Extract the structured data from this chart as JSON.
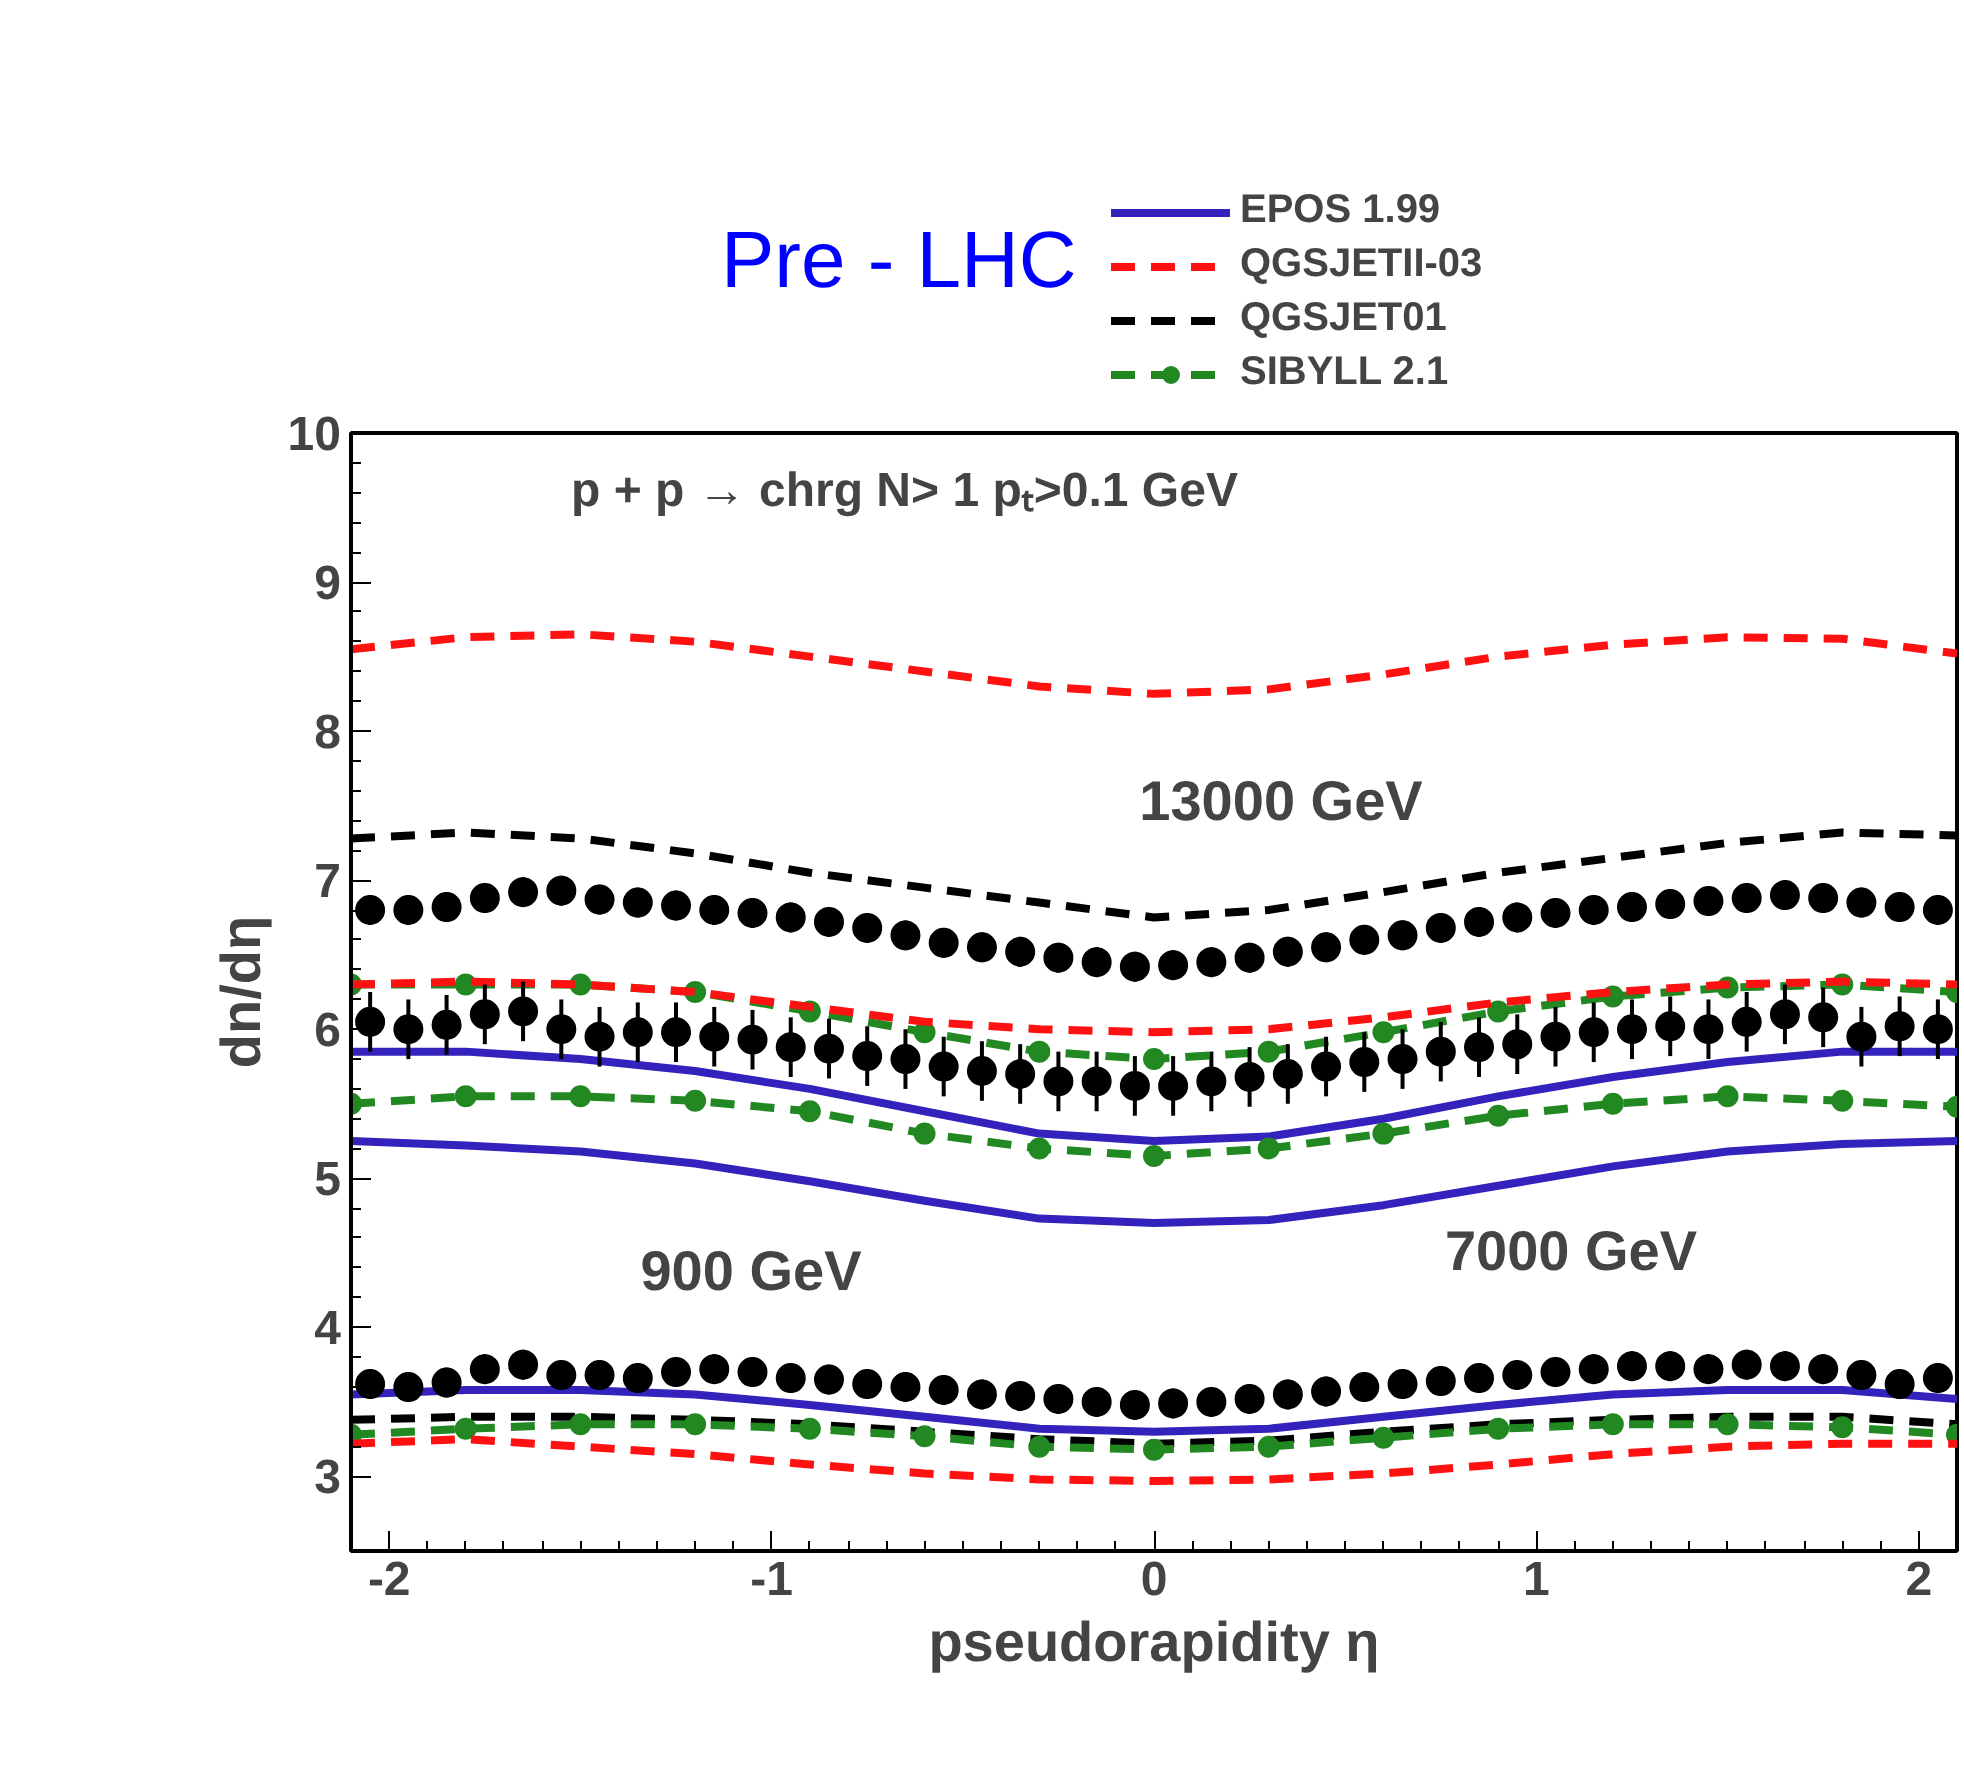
{
  "chart_data": {
    "type": "line",
    "title": "Pre - LHC",
    "subtitle": "p + p → chrg  N> 1   pₜ>0.1 GeV",
    "xlabel": "pseudorapidity η",
    "ylabel": "dn/dη",
    "xlim": [
      -2.1,
      2.1
    ],
    "ylim": [
      2.5,
      10
    ],
    "xticks": [
      -2,
      -1,
      0,
      1,
      2
    ],
    "yticks": [
      3,
      4,
      5,
      6,
      7,
      8,
      9,
      10
    ],
    "grid": false,
    "legend": "top right",
    "annotations": [
      "13000 GeV",
      "7000 GeV",
      "900 GeV"
    ],
    "series": [
      {
        "name": "EPOS 1.99",
        "color": "#3322bb",
        "line_style": "solid",
        "marker": "none",
        "x": [
          -2.1,
          -1.8,
          -1.5,
          -1.2,
          -0.9,
          -0.6,
          -0.3,
          0,
          0.3,
          0.6,
          0.9,
          1.2,
          1.5,
          1.8,
          2.1
        ],
        "values": [
          5.85,
          5.85,
          5.8,
          5.72,
          5.6,
          5.45,
          5.3,
          5.25,
          5.28,
          5.4,
          5.55,
          5.68,
          5.78,
          5.85,
          5.85
        ]
      },
      {
        "name": "QGSJETII-03",
        "color": "#ff1111",
        "line_style": "dashed",
        "marker": "none",
        "x": [
          -2.1,
          -1.8,
          -1.5,
          -1.2,
          -0.9,
          -0.6,
          -0.3,
          0,
          0.3,
          0.6,
          0.9,
          1.2,
          1.5,
          1.8,
          2.1
        ],
        "values": [
          8.55,
          8.63,
          8.65,
          8.6,
          8.5,
          8.4,
          8.3,
          8.25,
          8.28,
          8.38,
          8.5,
          8.58,
          8.63,
          8.62,
          8.52
        ]
      },
      {
        "name": "QGSJET01",
        "color": "#000000",
        "line_style": "dashed",
        "marker": "none",
        "x": [
          -2.1,
          -1.8,
          -1.5,
          -1.2,
          -0.9,
          -0.6,
          -0.3,
          0,
          0.3,
          0.6,
          0.9,
          1.2,
          1.5,
          1.8,
          2.1
        ],
        "values": [
          7.28,
          7.32,
          7.28,
          7.18,
          7.05,
          6.95,
          6.85,
          6.75,
          6.8,
          6.92,
          7.05,
          7.15,
          7.25,
          7.32,
          7.3
        ]
      },
      {
        "name": "SIBYLL 2.1",
        "color": "#228822",
        "line_style": "dashed",
        "marker": "circle",
        "x": [
          -2.1,
          -1.8,
          -1.5,
          -1.2,
          -0.9,
          -0.6,
          -0.3,
          0,
          0.3,
          0.6,
          0.9,
          1.2,
          1.5,
          1.8,
          2.1
        ],
        "values": [
          6.3,
          6.3,
          6.3,
          6.25,
          6.12,
          5.98,
          5.85,
          5.8,
          5.85,
          5.98,
          6.12,
          6.22,
          6.28,
          6.3,
          6.25
        ]
      },
      {
        "type": "line",
        "color": "#ff1111",
        "line_style": "dashed",
        "marker": "none",
        "x": [
          -2.1,
          -1.8,
          -1.5,
          -1.2,
          -0.9,
          -0.6,
          -0.3,
          0,
          0.3,
          0.6,
          0.9,
          1.2,
          1.5,
          1.8,
          2.1
        ],
        "values": [
          6.3,
          6.32,
          6.3,
          6.25,
          6.15,
          6.05,
          6.0,
          5.98,
          6.0,
          6.08,
          6.18,
          6.25,
          6.3,
          6.32,
          6.3
        ]
      },
      {
        "type": "line",
        "color": "#228822",
        "line_style": "dashed",
        "marker": "circle",
        "x": [
          -2.1,
          -1.8,
          -1.5,
          -1.2,
          -0.9,
          -0.6,
          -0.3,
          0,
          0.3,
          0.6,
          0.9,
          1.2,
          1.5,
          1.8,
          2.1
        ],
        "values": [
          5.5,
          5.55,
          5.55,
          5.52,
          5.45,
          5.3,
          5.2,
          5.15,
          5.2,
          5.3,
          5.42,
          5.5,
          5.55,
          5.52,
          5.48
        ]
      },
      {
        "type": "line",
        "color": "#3322bb",
        "line_style": "solid",
        "marker": "none",
        "x": [
          -2.1,
          -1.8,
          -1.5,
          -1.2,
          -0.9,
          -0.6,
          -0.3,
          0,
          0.3,
          0.6,
          0.9,
          1.2,
          1.5,
          1.8,
          2.1
        ],
        "values": [
          5.25,
          5.22,
          5.18,
          5.1,
          4.98,
          4.85,
          4.73,
          4.7,
          4.72,
          4.82,
          4.95,
          5.08,
          5.18,
          5.23,
          5.25
        ]
      },
      {
        "type": "line",
        "color": "#3322bb",
        "line_style": "solid",
        "marker": "none",
        "x": [
          -2.1,
          -1.8,
          -1.5,
          -1.2,
          -0.9,
          -0.6,
          -0.3,
          0,
          0.3,
          0.6,
          0.9,
          1.2,
          1.5,
          1.8,
          2.1
        ],
        "values": [
          3.55,
          3.58,
          3.58,
          3.55,
          3.48,
          3.4,
          3.32,
          3.3,
          3.32,
          3.4,
          3.48,
          3.55,
          3.58,
          3.58,
          3.52
        ]
      },
      {
        "type": "line",
        "color": "#000000",
        "line_style": "dashed",
        "marker": "none",
        "x": [
          -2.1,
          -1.8,
          -1.5,
          -1.2,
          -0.9,
          -0.6,
          -0.3,
          0,
          0.3,
          0.6,
          0.9,
          1.2,
          1.5,
          1.8,
          2.1
        ],
        "values": [
          3.38,
          3.4,
          3.4,
          3.38,
          3.35,
          3.3,
          3.25,
          3.22,
          3.24,
          3.3,
          3.35,
          3.38,
          3.4,
          3.4,
          3.35
        ]
      },
      {
        "type": "line",
        "color": "#228822",
        "line_style": "dashed",
        "marker": "circle",
        "x": [
          -2.1,
          -1.8,
          -1.5,
          -1.2,
          -0.9,
          -0.6,
          -0.3,
          0,
          0.3,
          0.6,
          0.9,
          1.2,
          1.5,
          1.8,
          2.1
        ],
        "values": [
          3.28,
          3.32,
          3.35,
          3.35,
          3.32,
          3.27,
          3.2,
          3.18,
          3.2,
          3.26,
          3.32,
          3.35,
          3.35,
          3.33,
          3.28
        ]
      },
      {
        "type": "line",
        "color": "#ff1111",
        "line_style": "dashed",
        "marker": "none",
        "x": [
          -2.1,
          -1.8,
          -1.5,
          -1.2,
          -0.9,
          -0.6,
          -0.3,
          0,
          0.3,
          0.6,
          0.9,
          1.2,
          1.5,
          1.8,
          2.1
        ],
        "values": [
          3.22,
          3.25,
          3.2,
          3.15,
          3.08,
          3.02,
          2.98,
          2.97,
          2.98,
          3.02,
          3.08,
          3.15,
          3.2,
          3.22,
          3.22
        ]
      },
      {
        "type": "scatter",
        "color": "#000000",
        "marker": "circle",
        "x": [
          -2.05,
          -1.95,
          -1.85,
          -1.75,
          -1.65,
          -1.55,
          -1.45,
          -1.35,
          -1.25,
          -1.15,
          -1.05,
          -0.95,
          -0.85,
          -0.75,
          -0.65,
          -0.55,
          -0.45,
          -0.35,
          -0.25,
          -0.15,
          -0.05,
          0.05,
          0.15,
          0.25,
          0.35,
          0.45,
          0.55,
          0.65,
          0.75,
          0.85,
          0.95,
          1.05,
          1.15,
          1.25,
          1.35,
          1.45,
          1.55,
          1.65,
          1.75,
          1.85,
          1.95,
          2.05
        ],
        "values": [
          6.8,
          6.8,
          6.82,
          6.88,
          6.92,
          6.93,
          6.87,
          6.85,
          6.83,
          6.8,
          6.78,
          6.75,
          6.72,
          6.68,
          6.63,
          6.58,
          6.55,
          6.52,
          6.48,
          6.45,
          6.42,
          6.43,
          6.45,
          6.48,
          6.52,
          6.55,
          6.6,
          6.63,
          6.68,
          6.72,
          6.75,
          6.78,
          6.8,
          6.82,
          6.84,
          6.86,
          6.88,
          6.9,
          6.88,
          6.85,
          6.82,
          6.8
        ],
        "errors": [
          0.1,
          0.1,
          0.1,
          0.1,
          0.1,
          0.1,
          0.1,
          0.1,
          0.1,
          0.1,
          0.1,
          0.1,
          0.1,
          0.1,
          0.1,
          0.1,
          0.1,
          0.1,
          0.1,
          0.1,
          0.1,
          0.1,
          0.1,
          0.1,
          0.1,
          0.1,
          0.1,
          0.1,
          0.1,
          0.1,
          0.1,
          0.1,
          0.1,
          0.1,
          0.1,
          0.1,
          0.1,
          0.1,
          0.1,
          0.1,
          0.1,
          0.1
        ]
      },
      {
        "type": "scatter",
        "color": "#000000",
        "marker": "circle",
        "x": [
          -2.05,
          -1.95,
          -1.85,
          -1.75,
          -1.65,
          -1.55,
          -1.45,
          -1.35,
          -1.25,
          -1.15,
          -1.05,
          -0.95,
          -0.85,
          -0.75,
          -0.65,
          -0.55,
          -0.45,
          -0.35,
          -0.25,
          -0.15,
          -0.05,
          0.05,
          0.15,
          0.25,
          0.35,
          0.45,
          0.55,
          0.65,
          0.75,
          0.85,
          0.95,
          1.05,
          1.15,
          1.25,
          1.35,
          1.45,
          1.55,
          1.65,
          1.75,
          1.85,
          1.95,
          2.05
        ],
        "values": [
          6.05,
          6.0,
          6.03,
          6.1,
          6.12,
          6.0,
          5.95,
          5.98,
          5.98,
          5.95,
          5.93,
          5.88,
          5.87,
          5.82,
          5.8,
          5.75,
          5.72,
          5.7,
          5.65,
          5.65,
          5.62,
          5.62,
          5.65,
          5.68,
          5.7,
          5.75,
          5.78,
          5.8,
          5.85,
          5.88,
          5.9,
          5.95,
          5.98,
          6.0,
          6.02,
          6.0,
          6.05,
          6.1,
          6.08,
          5.95,
          6.02,
          6.0
        ],
        "errors": [
          0.2,
          0.2,
          0.2,
          0.2,
          0.2,
          0.2,
          0.2,
          0.2,
          0.2,
          0.2,
          0.2,
          0.2,
          0.2,
          0.2,
          0.2,
          0.2,
          0.2,
          0.2,
          0.2,
          0.2,
          0.2,
          0.2,
          0.2,
          0.2,
          0.2,
          0.2,
          0.2,
          0.2,
          0.2,
          0.2,
          0.2,
          0.2,
          0.2,
          0.2,
          0.2,
          0.2,
          0.2,
          0.2,
          0.2,
          0.2,
          0.2,
          0.2
        ]
      },
      {
        "type": "scatter",
        "color": "#000000",
        "marker": "circle",
        "x": [
          -2.05,
          -1.95,
          -1.85,
          -1.75,
          -1.65,
          -1.55,
          -1.45,
          -1.35,
          -1.25,
          -1.15,
          -1.05,
          -0.95,
          -0.85,
          -0.75,
          -0.65,
          -0.55,
          -0.45,
          -0.35,
          -0.25,
          -0.15,
          -0.05,
          0.05,
          0.15,
          0.25,
          0.35,
          0.45,
          0.55,
          0.65,
          0.75,
          0.85,
          0.95,
          1.05,
          1.15,
          1.25,
          1.35,
          1.45,
          1.55,
          1.65,
          1.75,
          1.85,
          1.95,
          2.05
        ],
        "values": [
          3.62,
          3.6,
          3.63,
          3.72,
          3.75,
          3.68,
          3.68,
          3.66,
          3.7,
          3.72,
          3.7,
          3.66,
          3.65,
          3.62,
          3.6,
          3.58,
          3.55,
          3.54,
          3.52,
          3.5,
          3.48,
          3.49,
          3.5,
          3.52,
          3.55,
          3.57,
          3.6,
          3.62,
          3.64,
          3.66,
          3.68,
          3.7,
          3.72,
          3.74,
          3.74,
          3.72,
          3.75,
          3.74,
          3.72,
          3.68,
          3.62,
          3.66
        ],
        "errors": [
          0.1,
          0.1,
          0.1,
          0.1,
          0.1,
          0.1,
          0.1,
          0.1,
          0.1,
          0.1,
          0.1,
          0.1,
          0.1,
          0.1,
          0.1,
          0.1,
          0.1,
          0.1,
          0.1,
          0.1,
          0.1,
          0.1,
          0.1,
          0.1,
          0.1,
          0.1,
          0.1,
          0.1,
          0.1,
          0.1,
          0.1,
          0.1,
          0.1,
          0.1,
          0.1,
          0.1,
          0.1,
          0.1,
          0.1,
          0.1,
          0.1,
          0.1
        ]
      }
    ]
  }
}
